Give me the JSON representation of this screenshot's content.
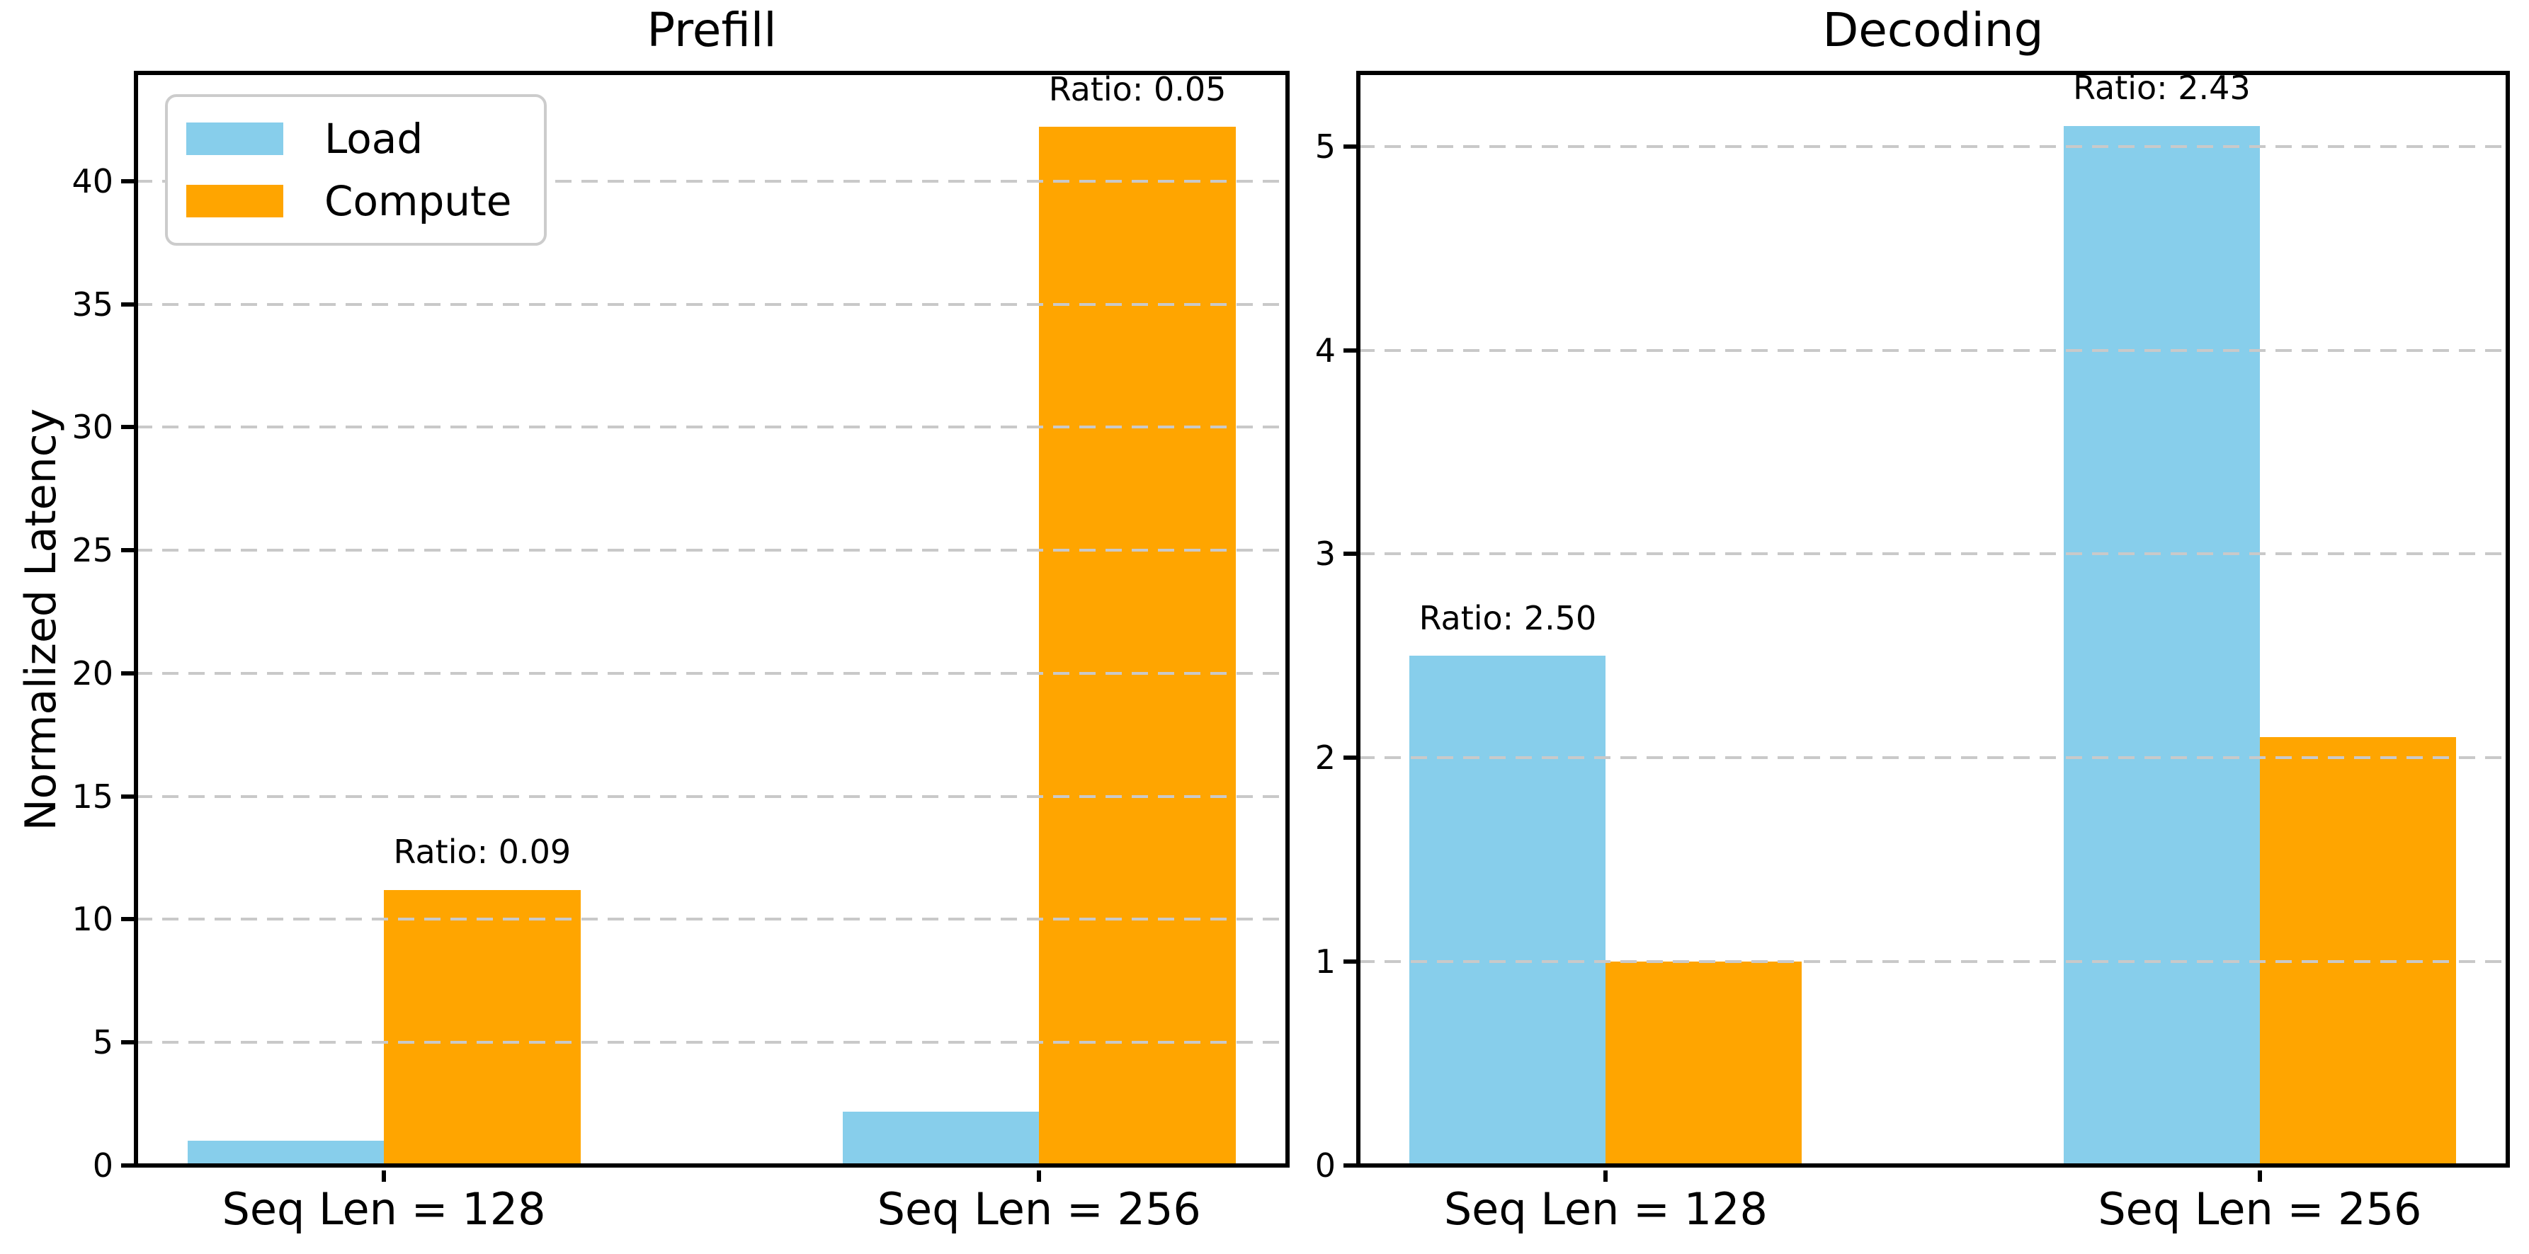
{
  "figure": {
    "background": "#ffffff"
  },
  "colors": {
    "load": "#87CEEB",
    "compute": "#FFA500",
    "grid": "#c9c9c9",
    "text": "#000000",
    "legend_border": "#cccccc"
  },
  "legend": {
    "items": [
      {
        "label": "Load",
        "color": "#87CEEB"
      },
      {
        "label": "Compute",
        "color": "#FFA500"
      }
    ]
  },
  "chart_data": [
    {
      "type": "bar",
      "title": "Prefill",
      "ylabel": "Normalized Latency",
      "categories": [
        "Seq Len = 128",
        "Seq Len = 256"
      ],
      "series": [
        {
          "name": "Load",
          "color": "#87CEEB",
          "values": [
            1.0,
            2.2
          ]
        },
        {
          "name": "Compute",
          "color": "#FFA500",
          "values": [
            11.2,
            42.2
          ]
        }
      ],
      "annotations": [
        {
          "text": "Ratio: 0.09",
          "group": 0,
          "series": 1
        },
        {
          "text": "Ratio: 0.05",
          "group": 1,
          "series": 1
        }
      ],
      "yticks": [
        0,
        5,
        10,
        15,
        20,
        25,
        30,
        35,
        40
      ],
      "ylim": [
        0,
        44.4
      ],
      "grid": "horizontal-dashed",
      "legend": true,
      "legend_position": "upper-left"
    },
    {
      "type": "bar",
      "title": "Decoding",
      "ylabel": "",
      "categories": [
        "Seq Len = 128",
        "Seq Len = 256"
      ],
      "series": [
        {
          "name": "Load",
          "color": "#87CEEB",
          "values": [
            2.5,
            5.1
          ]
        },
        {
          "name": "Compute",
          "color": "#FFA500",
          "values": [
            1.0,
            2.1
          ]
        }
      ],
      "annotations": [
        {
          "text": "Ratio: 2.50",
          "group": 0,
          "series": 0
        },
        {
          "text": "Ratio: 2.43",
          "group": 1,
          "series": 0
        }
      ],
      "yticks": [
        0,
        1,
        2,
        3,
        4,
        5
      ],
      "ylim": [
        0,
        5.36
      ],
      "grid": "horizontal-dashed",
      "legend": false
    }
  ]
}
